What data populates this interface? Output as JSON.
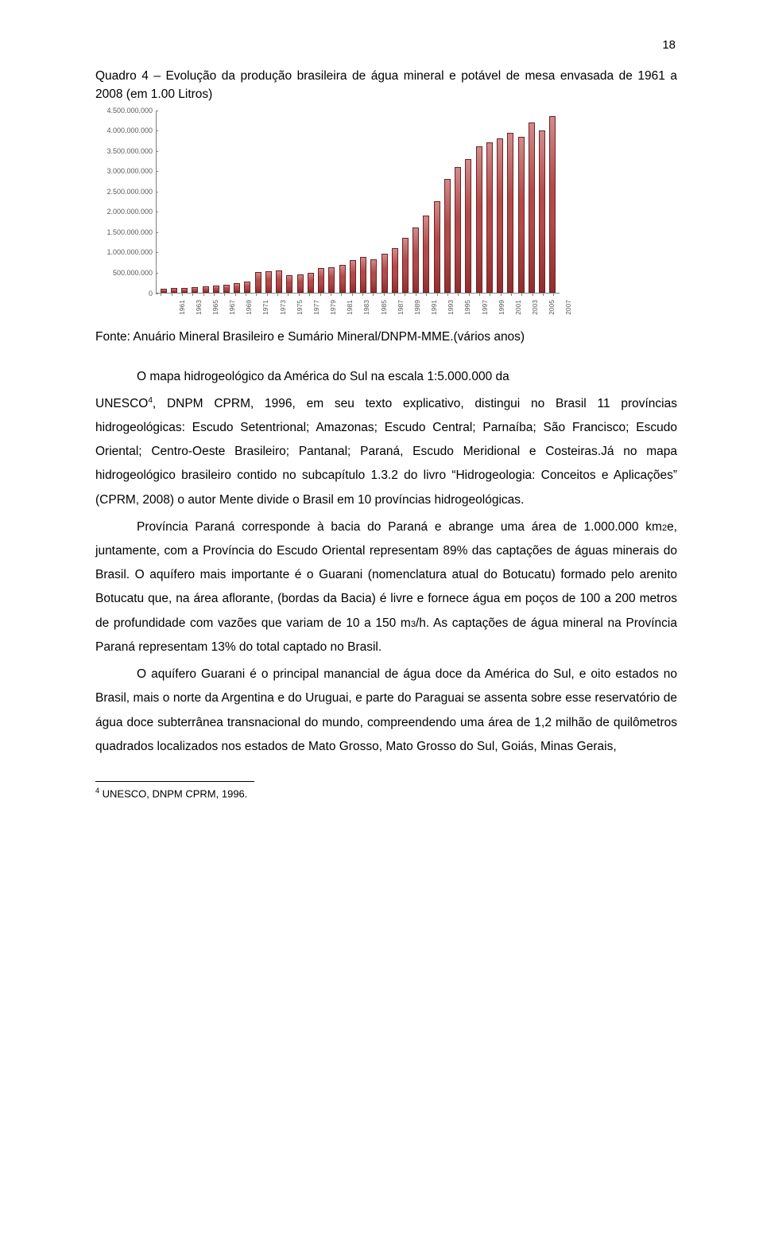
{
  "page_number": "18",
  "figure_title": "Quadro 4 – Evolução da produção brasileira de água mineral e potável de mesa envasada de 1961 a 2008 (em 1.00 Litros)",
  "chart": {
    "type": "bar",
    "bar_color_top": "#d18b8b",
    "bar_color_mid": "#b34a4a",
    "bar_color_bottom": "#8e2f2f",
    "bar_border": "#6d2222",
    "axis_color": "#808080",
    "label_color": "#595959",
    "ymax": 4500000,
    "y_ticks": [
      "0",
      "500.000.000",
      "1.000.000.000",
      "1.500.000.000",
      "2.000.000.000",
      "2.500.000.000",
      "3.000.000.000",
      "3.500.000.000",
      "4.000.000.000",
      "4.500.000.000"
    ],
    "x_labels": [
      "1961",
      "1963",
      "1965",
      "1967",
      "1969",
      "1971",
      "1973",
      "1975",
      "1977",
      "1979",
      "1981",
      "1983",
      "1985",
      "1987",
      "1989",
      "1991",
      "1993",
      "1995",
      "1997",
      "1999",
      "2001",
      "2003",
      "2005",
      "2007"
    ],
    "values": [
      90000,
      100000,
      110000,
      120000,
      140000,
      160000,
      180000,
      220000,
      260000,
      500000,
      520000,
      540000,
      420000,
      440000,
      480000,
      600000,
      620000,
      680000,
      800000,
      880000,
      820000,
      950000,
      1100000,
      1350000,
      1600000,
      1900000,
      2250000,
      2800000,
      3100000,
      3300000,
      3600000,
      3700000,
      3800000,
      3950000,
      3850000,
      4200000,
      4000000,
      4350000
    ]
  },
  "source": "Fonte: Anuário Mineral Brasileiro e Sumário Mineral/DNPM-MME.(vários anos)",
  "p1a": "O mapa hidrogeológico da América do Sul na escala 1:5.000.000 da",
  "p1b": "UNESCO",
  "p1b_sup": "4",
  "p1c": ", DNPM CPRM, 1996, em seu texto explicativo, distingui no Brasil 11 províncias hidrogeológicas: Escudo Setentrional; Amazonas; Escudo Central; Parnaíba; São Francisco; Escudo Oriental; Centro-Oeste Brasileiro; Pantanal; Paraná, Escudo Meridional e Costeiras.Já no mapa hidrogeológico brasileiro contido no subcapítulo 1.3.2 do livro “Hidrogeologia: Conceitos e Aplicações” (CPRM, 2008) o autor Mente divide o Brasil em 10 províncias hidrogeológicas.",
  "p2a": "Província Paraná corresponde à bacia do Paraná e abrange uma área de 1.000.000 km",
  "p2a_sub": "2",
  "p2b": "e, juntamente, com a Província do Escudo Oriental representam 89% das captações de águas minerais do Brasil. O aquífero mais importante é o Guarani (nomenclatura atual do Botucatu) formado pelo arenito Botucatu que, na área aflorante, (bordas da Bacia) é livre e fornece água em poços de 100 a 200 metros de profundidade com vazões que variam de 10 a 150 m",
  "p2b_sub": "3",
  "p2c": "/h. As captações de água mineral na Província Paraná representam 13% do total captado no Brasil.",
  "p3": "O aquífero Guarani é o principal manancial de água doce da América do Sul, e oito estados no Brasil, mais o norte da Argentina e do Uruguai, e parte do Paraguai se assenta sobre esse reservatório de água doce subterrânea transnacional do mundo, compreendendo uma área de 1,2 milhão de quilômetros quadrados localizados nos estados de Mato Grosso, Mato Grosso do Sul, Goiás, Minas Gerais,",
  "footnote_sup": "4",
  "footnote": " UNESCO, DNPM CPRM, 1996."
}
